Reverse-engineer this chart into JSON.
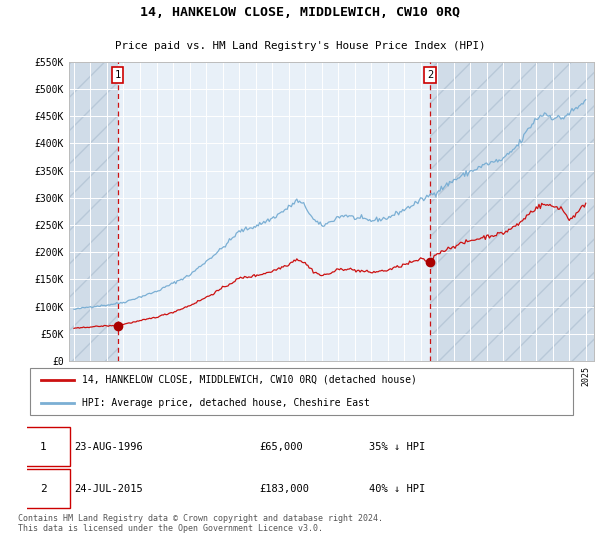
{
  "title": "14, HANKELOW CLOSE, MIDDLEWICH, CW10 0RQ",
  "subtitle": "Price paid vs. HM Land Registry's House Price Index (HPI)",
  "legend_line1": "14, HANKELOW CLOSE, MIDDLEWICH, CW10 0RQ (detached house)",
  "legend_line2": "HPI: Average price, detached house, Cheshire East",
  "footnote": "Contains HM Land Registry data © Crown copyright and database right 2024.\nThis data is licensed under the Open Government Licence v3.0.",
  "sale1_date": "23-AUG-1996",
  "sale1_price": "£65,000",
  "sale1_hpi": "35% ↓ HPI",
  "sale2_date": "24-JUL-2015",
  "sale2_price": "£183,000",
  "sale2_hpi": "40% ↓ HPI",
  "hpi_color": "#7bafd4",
  "price_color": "#cc1111",
  "marker_color": "#aa0000",
  "vline_color": "#cc1111",
  "bg_color": "#e8f0f8",
  "ylim": [
    0,
    550000
  ],
  "yticks": [
    0,
    50000,
    100000,
    150000,
    200000,
    250000,
    300000,
    350000,
    400000,
    450000,
    500000,
    550000
  ],
  "xlim_start": 1993.7,
  "xlim_end": 2025.5,
  "sale1_x": 1996.64,
  "sale1_y": 65000,
  "sale2_x": 2015.56,
  "sale2_y": 183000
}
